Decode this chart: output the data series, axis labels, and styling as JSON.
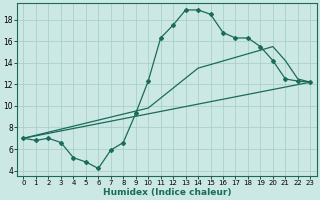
{
  "xlabel": "Humidex (Indice chaleur)",
  "bg_color": "#cce8e4",
  "line_color": "#1a6b5a",
  "grid_color": "#aacfcb",
  "xlim": [
    -0.5,
    23.5
  ],
  "ylim": [
    3.5,
    19.5
  ],
  "xticks": [
    0,
    1,
    2,
    3,
    4,
    5,
    6,
    7,
    8,
    9,
    10,
    11,
    12,
    13,
    14,
    15,
    16,
    17,
    18,
    19,
    20,
    21,
    22,
    23
  ],
  "yticks": [
    4,
    6,
    8,
    10,
    12,
    14,
    16,
    18
  ],
  "line1_x": [
    0,
    1,
    2,
    3,
    4,
    5,
    6,
    7,
    8,
    9,
    10,
    11,
    12,
    13,
    14,
    15,
    16,
    17,
    18,
    19,
    20,
    21,
    22,
    23
  ],
  "line1_y": [
    7.0,
    6.8,
    7.0,
    6.6,
    5.2,
    4.8,
    4.2,
    5.9,
    6.6,
    9.3,
    12.3,
    16.3,
    17.5,
    18.9,
    18.9,
    18.5,
    16.8,
    16.3,
    16.3,
    15.5,
    14.2,
    12.5,
    12.3,
    12.2
  ],
  "line2_x": [
    0,
    23
  ],
  "line2_y": [
    7.0,
    12.2
  ],
  "line3_x": [
    0,
    10,
    14,
    20,
    21,
    22,
    23
  ],
  "line3_y": [
    7.0,
    9.8,
    13.5,
    15.5,
    14.2,
    12.5,
    12.2
  ]
}
